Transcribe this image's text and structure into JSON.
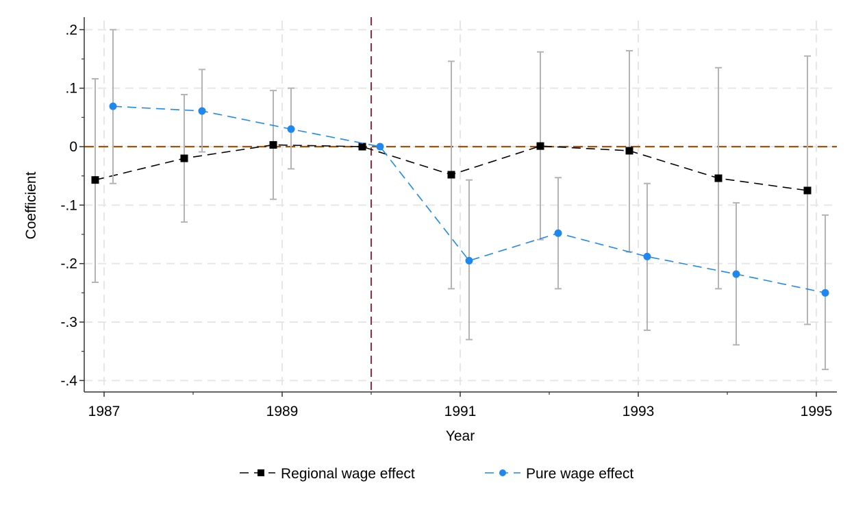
{
  "chart_data": {
    "type": "line",
    "title": "",
    "xlabel": "Year",
    "ylabel": "Coefficient",
    "xlim": [
      1986.85,
      1995.2
    ],
    "ylim": [
      -0.42,
      0.22
    ],
    "x_ticks": [
      1987,
      1989,
      1991,
      1993,
      1995
    ],
    "x_tick_labels": [
      "1987",
      "1989",
      "1991",
      "1993",
      "1995"
    ],
    "y_ticks": [
      0.2,
      0.1,
      0,
      -0.1,
      -0.2,
      -0.3,
      -0.4
    ],
    "y_tick_labels": [
      ".2",
      ".1",
      "0",
      "-.1",
      "-.2",
      "-.3",
      "-.4"
    ],
    "grid": true,
    "legend_position": "bottom",
    "reference_lines": {
      "vertical_x": 1990,
      "vertical_color": "#a0283c",
      "horizontal_y": 0,
      "horizontal_color": "#a0520a"
    },
    "x": [
      1987,
      1988,
      1989,
      1990,
      1991,
      1992,
      1993,
      1994,
      1995
    ],
    "series": [
      {
        "name": "Regional wage effect",
        "color": "#000000",
        "marker": "square",
        "x_offset": -0.1,
        "values": [
          -0.057,
          -0.02,
          0.003,
          0.0,
          -0.048,
          0.001,
          -0.007,
          -0.054,
          -0.075
        ],
        "ci_low": [
          -0.232,
          -0.129,
          -0.09,
          null,
          -0.243,
          -0.159,
          -0.18,
          -0.243,
          -0.304
        ],
        "ci_high": [
          0.116,
          0.089,
          0.096,
          null,
          0.146,
          0.162,
          0.164,
          0.135,
          0.155
        ]
      },
      {
        "name": "Pure wage effect",
        "color": "#1e88f0",
        "marker": "circle",
        "x_offset": 0.1,
        "values": [
          0.069,
          0.061,
          0.03,
          0.0,
          -0.195,
          -0.148,
          -0.188,
          -0.218,
          -0.25
        ],
        "ci_low": [
          -0.063,
          -0.009,
          -0.038,
          null,
          -0.33,
          -0.243,
          -0.314,
          -0.339,
          -0.381
        ],
        "ci_high": [
          0.2,
          0.132,
          0.1,
          null,
          -0.057,
          -0.053,
          -0.063,
          -0.096,
          -0.117
        ]
      }
    ],
    "ci_color": "#b4b4b4"
  }
}
